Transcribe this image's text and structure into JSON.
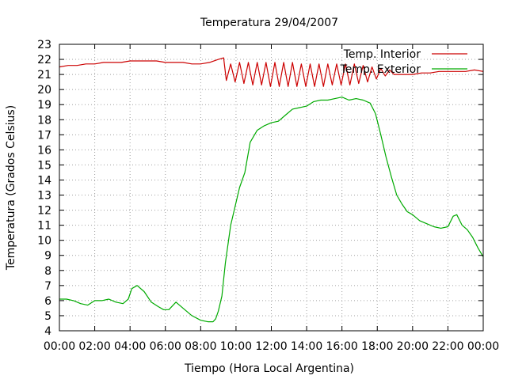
{
  "chart_data": {
    "type": "line",
    "title": "Temperatura 29/04/2007",
    "xlabel": "Tiempo (Hora Local Argentina)",
    "ylabel": "Temperatura (Grados Celsius)",
    "xlim": [
      0,
      24
    ],
    "ylim": [
      4,
      23
    ],
    "x_ticks": [
      "00:00",
      "02:00",
      "04:00",
      "06:00",
      "08:00",
      "10:00",
      "12:00",
      "14:00",
      "16:00",
      "18:00",
      "20:00",
      "22:00",
      "00:00"
    ],
    "y_ticks": [
      4,
      5,
      6,
      7,
      8,
      9,
      10,
      11,
      12,
      13,
      14,
      15,
      16,
      17,
      18,
      19,
      20,
      21,
      22,
      23
    ],
    "grid": true,
    "legend_position": "top-right",
    "series": [
      {
        "name": "Temp. Interior",
        "color": "#cc0000",
        "x": [
          0,
          0.5,
          1,
          1.5,
          2,
          2.5,
          3,
          3.5,
          4,
          4.5,
          5,
          5.5,
          6,
          6.5,
          7,
          7.5,
          8,
          8.5,
          9,
          9.3,
          9.45,
          9.7,
          9.95,
          10.2,
          10.45,
          10.7,
          10.95,
          11.2,
          11.45,
          11.7,
          11.95,
          12.2,
          12.45,
          12.7,
          12.95,
          13.2,
          13.45,
          13.7,
          13.95,
          14.2,
          14.45,
          14.7,
          14.95,
          15.2,
          15.45,
          15.7,
          15.95,
          16.2,
          16.45,
          16.7,
          16.95,
          17.2,
          17.45,
          17.7,
          17.95,
          18.2,
          18.45,
          18.7,
          18.95,
          19.2,
          19.5,
          20,
          20.5,
          21,
          21.5,
          22,
          22.5,
          23,
          23.5,
          24
        ],
        "values": [
          21.5,
          21.6,
          21.6,
          21.7,
          21.7,
          21.8,
          21.8,
          21.8,
          21.9,
          21.9,
          21.9,
          21.9,
          21.8,
          21.8,
          21.8,
          21.7,
          21.7,
          21.8,
          22.0,
          22.1,
          20.6,
          21.7,
          20.5,
          21.8,
          20.4,
          21.8,
          20.3,
          21.8,
          20.3,
          21.8,
          20.2,
          21.8,
          20.2,
          21.8,
          20.2,
          21.8,
          20.2,
          21.7,
          20.2,
          21.7,
          20.2,
          21.7,
          20.2,
          21.7,
          20.3,
          21.7,
          20.3,
          21.7,
          20.3,
          21.7,
          20.4,
          21.6,
          20.5,
          21.5,
          20.7,
          21.4,
          20.9,
          21.3,
          21.0,
          21.0,
          21.0,
          21.0,
          21.1,
          21.1,
          21.2,
          21.2,
          21.2,
          21.2,
          21.3,
          21.2
        ]
      },
      {
        "name": "Temp. Exterior",
        "color": "#00aa00",
        "x": [
          0,
          0.4,
          0.8,
          1.2,
          1.6,
          2.0,
          2.4,
          2.8,
          3.2,
          3.6,
          3.9,
          4.1,
          4.4,
          4.8,
          5.2,
          5.6,
          5.9,
          6.2,
          6.6,
          7.0,
          7.5,
          8.0,
          8.4,
          8.7,
          8.85,
          9.0,
          9.2,
          9.4,
          9.7,
          10.0,
          10.2,
          10.5,
          10.8,
          11.2,
          11.6,
          12.0,
          12.4,
          12.8,
          13.2,
          13.6,
          14.0,
          14.4,
          14.8,
          15.2,
          15.6,
          16.0,
          16.4,
          16.8,
          17.2,
          17.6,
          17.9,
          18.2,
          18.5,
          18.8,
          19.1,
          19.4,
          19.7,
          20.0,
          20.4,
          20.8,
          21.2,
          21.6,
          22.0,
          22.3,
          22.5,
          22.8,
          23.1,
          23.4,
          23.7,
          24.0
        ],
        "values": [
          6.1,
          6.1,
          6.0,
          5.8,
          5.7,
          6.0,
          6.0,
          6.1,
          5.9,
          5.8,
          6.1,
          6.8,
          7.0,
          6.6,
          5.9,
          5.6,
          5.4,
          5.4,
          5.9,
          5.5,
          5.0,
          4.7,
          4.6,
          4.6,
          4.8,
          5.3,
          6.3,
          8.5,
          11.0,
          12.5,
          13.5,
          14.5,
          16.5,
          17.3,
          17.6,
          17.8,
          17.9,
          18.3,
          18.7,
          18.8,
          18.9,
          19.2,
          19.3,
          19.3,
          19.4,
          19.5,
          19.3,
          19.4,
          19.3,
          19.1,
          18.4,
          17.0,
          15.5,
          14.2,
          13.0,
          12.4,
          11.9,
          11.7,
          11.3,
          11.1,
          10.9,
          10.8,
          10.9,
          11.6,
          11.7,
          11.0,
          10.7,
          10.2,
          9.5,
          8.9
        ]
      }
    ]
  }
}
